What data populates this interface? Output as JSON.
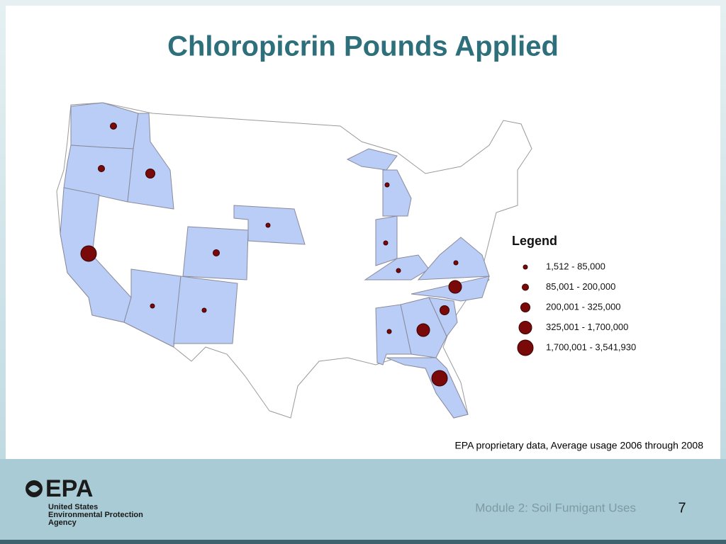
{
  "header": {
    "title": "Chloropicrin Pounds Applied"
  },
  "map": {
    "legend": {
      "title": "Legend",
      "items": [
        "1,512 - 85,000",
        "85,001 - 200,000",
        "200,001 - 325,000",
        "325,001 - 1,700,000",
        "1,700,001 - 3,541,930"
      ]
    },
    "dots": [
      1,
      1,
      2,
      4,
      1,
      0,
      0,
      0,
      0,
      0,
      0,
      0,
      3,
      2,
      3,
      0,
      4
    ],
    "source": "EPA proprietary data, Average usage 2006 through 2008"
  },
  "footer": {
    "logo": {
      "mark": "EPA",
      "lines": [
        "United States",
        "Environmental Protection",
        "Agency"
      ]
    },
    "module": "Module 2: Soil Fumigant Uses",
    "page": 7
  }
}
